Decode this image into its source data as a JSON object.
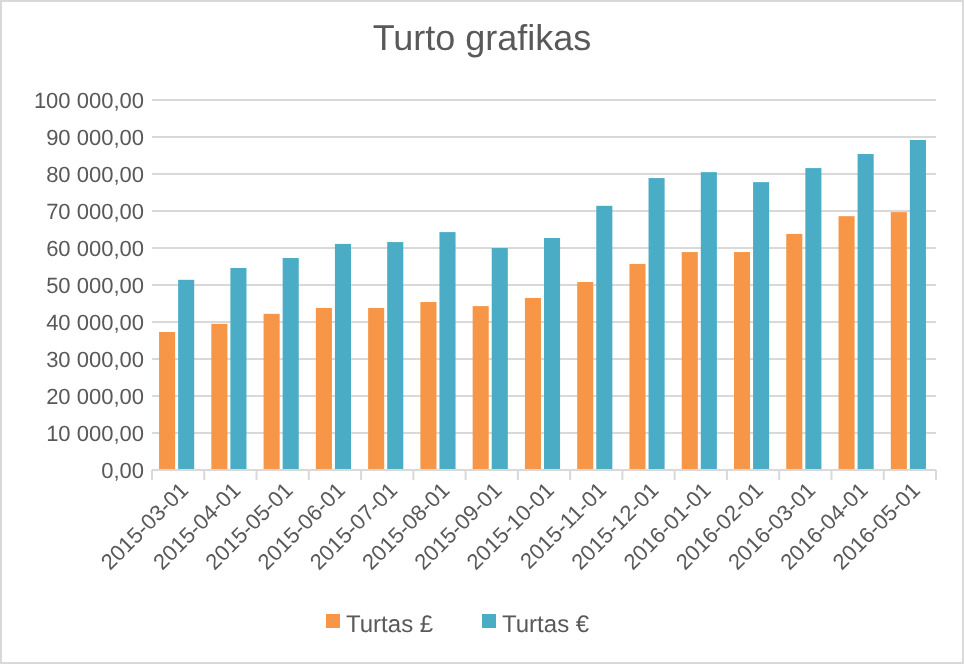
{
  "chart_data": {
    "type": "bar",
    "title": "Turto grafikas",
    "categories": [
      "2015-03-01",
      "2015-04-01",
      "2015-05-01",
      "2015-06-01",
      "2015-07-01",
      "2015-08-01",
      "2015-09-01",
      "2015-10-01",
      "2015-11-01",
      "2015-12-01",
      "2016-01-01",
      "2016-02-01",
      "2016-03-01",
      "2016-04-01",
      "2016-05-01"
    ],
    "series": [
      {
        "name": "Turtas £",
        "color": "#f79646",
        "values": [
          37300,
          39500,
          42200,
          43800,
          43800,
          45400,
          44300,
          46500,
          50800,
          55700,
          58900,
          58900,
          63800,
          68600,
          69700
        ]
      },
      {
        "name": "Turtas €",
        "color": "#4bacc6",
        "values": [
          51400,
          54600,
          57300,
          61100,
          61600,
          64300,
          60000,
          62700,
          71400,
          78900,
          80500,
          77800,
          81600,
          85400,
          89200
        ]
      }
    ],
    "ylim": [
      0,
      100000
    ],
    "yticks": [
      {
        "value": 0,
        "label": "0,00"
      },
      {
        "value": 10000,
        "label": "10 000,00"
      },
      {
        "value": 20000,
        "label": "20 000,00"
      },
      {
        "value": 30000,
        "label": "30 000,00"
      },
      {
        "value": 40000,
        "label": "40 000,00"
      },
      {
        "value": 50000,
        "label": "50 000,00"
      },
      {
        "value": 60000,
        "label": "60 000,00"
      },
      {
        "value": 70000,
        "label": "70 000,00"
      },
      {
        "value": 80000,
        "label": "80 000,00"
      },
      {
        "value": 90000,
        "label": "90 000,00"
      },
      {
        "value": 100000,
        "label": "100 000,00"
      }
    ],
    "grid": "y",
    "legend": "bottom"
  }
}
